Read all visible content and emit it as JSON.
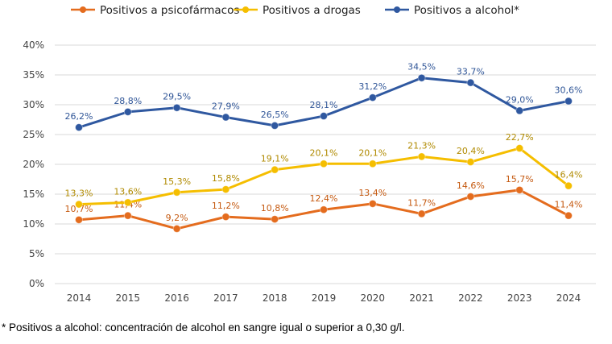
{
  "chart_data": {
    "type": "line",
    "categories": [
      "2014",
      "2015",
      "2016",
      "2017",
      "2018",
      "2019",
      "2020",
      "2021",
      "2022",
      "2023",
      "2024"
    ],
    "ylim": [
      0,
      40
    ],
    "yticks": [
      "0%",
      "5%",
      "10%",
      "15%",
      "20%",
      "25%",
      "30%",
      "35%",
      "40%"
    ],
    "grid": true,
    "legend_placement": "top",
    "series": [
      {
        "name": "Positivos a psicofármacos",
        "color": "#E46C1E",
        "label_color": "#C55A11",
        "values": [
          10.7,
          11.4,
          9.2,
          11.2,
          10.8,
          12.4,
          13.4,
          11.7,
          14.6,
          15.7,
          11.4
        ],
        "labels": [
          "10,7%",
          "11,4%",
          "9,2%",
          "11,2%",
          "10,8%",
          "12,4%",
          "13,4%",
          "11,7%",
          "14,6%",
          "15,7%",
          "11,4%"
        ]
      },
      {
        "name": "Positivos a drogas",
        "color": "#F5BE00",
        "label_color": "#B08A00",
        "values": [
          13.3,
          13.6,
          15.3,
          15.8,
          19.1,
          20.1,
          20.1,
          21.3,
          20.4,
          22.7,
          16.4
        ],
        "labels": [
          "13,3%",
          "13,6%",
          "15,3%",
          "15,8%",
          "19,1%",
          "20,1%",
          "20,1%",
          "21,3%",
          "20,4%",
          "22,7%",
          "16,4%"
        ]
      },
      {
        "name": "Positivos a alcohol*",
        "color": "#2F58A0",
        "label_color": "#2F5597",
        "values": [
          26.2,
          28.8,
          29.5,
          27.9,
          26.5,
          28.1,
          31.2,
          34.5,
          33.7,
          29.0,
          30.6
        ],
        "labels": [
          "26,2%",
          "28,8%",
          "29,5%",
          "27,9%",
          "26,5%",
          "28,1%",
          "31,2%",
          "34,5%",
          "33,7%",
          "29,0%",
          "30,6%"
        ]
      }
    ]
  },
  "footnote": "* Positivos a alcohol: concentración de alcohol en sangre igual o superior a 0,30 g/l."
}
